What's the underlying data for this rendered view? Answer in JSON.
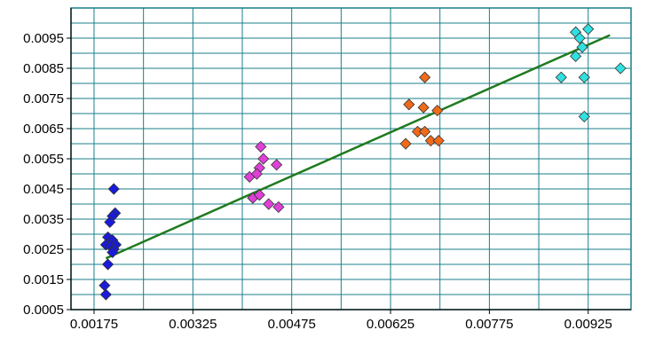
{
  "chart_data": {
    "type": "scatter",
    "title": "",
    "xlabel": "",
    "ylabel": "",
    "xlim": [
      0.0014,
      0.0099
    ],
    "ylim": [
      0.0005,
      0.0105
    ],
    "x_ticks": [
      "0.00175",
      "0.00325",
      "0.00475",
      "0.00625",
      "0.00775",
      "0.00925"
    ],
    "x_tick_values": [
      0.00175,
      0.00325,
      0.00475,
      0.00625,
      0.00775,
      0.00925
    ],
    "y_ticks": [
      "0.0095",
      "0.0085",
      "0.0075",
      "0.0065",
      "0.0055",
      "0.0045",
      "0.0035",
      "0.0025",
      "0.0015",
      "0.0005"
    ],
    "y_tick_values": [
      0.0095,
      0.0085,
      0.0075,
      0.0065,
      0.0055,
      0.0045,
      0.0035,
      0.0025,
      0.0015,
      0.0005
    ],
    "x_gridlines": [
      0.00175,
      0.0025,
      0.00325,
      0.004,
      0.00475,
      0.0055,
      0.00625,
      0.007,
      0.00775,
      0.0085,
      0.00925
    ],
    "y_gridlines": [
      0.0005,
      0.001,
      0.0015,
      0.002,
      0.0025,
      0.003,
      0.0035,
      0.004,
      0.0045,
      0.005,
      0.0055,
      0.006,
      0.0065,
      0.007,
      0.0075,
      0.008,
      0.0085,
      0.009,
      0.0095,
      0.01
    ],
    "grid": true,
    "legend": "none",
    "colors": {
      "grid": "#1a7f8a",
      "axis": "#000000",
      "trendline": "#1f7a1f",
      "marker_outline": "#333333"
    },
    "series": [
      {
        "color": "#1a1adb",
        "points": [
          [
            0.00205,
            0.0045
          ],
          [
            0.00207,
            0.0037
          ],
          [
            0.00203,
            0.0036
          ],
          [
            0.00199,
            0.0034
          ],
          [
            0.00196,
            0.0029
          ],
          [
            0.00203,
            0.0028
          ],
          [
            0.00193,
            0.00265
          ],
          [
            0.00208,
            0.00265
          ],
          [
            0.002,
            0.0026
          ],
          [
            0.00205,
            0.0025
          ],
          [
            0.00203,
            0.0024
          ],
          [
            0.00196,
            0.002
          ],
          [
            0.00191,
            0.0013
          ],
          [
            0.00193,
            0.001
          ]
        ]
      },
      {
        "color": "#e040d8",
        "points": [
          [
            0.00428,
            0.0059
          ],
          [
            0.00432,
            0.0055
          ],
          [
            0.00426,
            0.0052
          ],
          [
            0.00452,
            0.0053
          ],
          [
            0.00411,
            0.0049
          ],
          [
            0.00422,
            0.005
          ],
          [
            0.00416,
            0.0042
          ],
          [
            0.00426,
            0.0043
          ],
          [
            0.0044,
            0.004
          ],
          [
            0.00455,
            0.0039
          ]
        ]
      },
      {
        "color": "#f06a1a",
        "points": [
          [
            0.00677,
            0.0082
          ],
          [
            0.00653,
            0.0073
          ],
          [
            0.00675,
            0.0072
          ],
          [
            0.00696,
            0.0071
          ],
          [
            0.00666,
            0.0064
          ],
          [
            0.00677,
            0.0064
          ],
          [
            0.00648,
            0.006
          ],
          [
            0.00686,
            0.0061
          ],
          [
            0.00698,
            0.0061
          ]
        ]
      },
      {
        "color": "#30e0e0",
        "points": [
          [
            0.00925,
            0.0098
          ],
          [
            0.00906,
            0.0097
          ],
          [
            0.00912,
            0.0095
          ],
          [
            0.00916,
            0.0092
          ],
          [
            0.00906,
            0.0089
          ],
          [
            0.00884,
            0.0082
          ],
          [
            0.00919,
            0.0082
          ],
          [
            0.00974,
            0.0085
          ],
          [
            0.00919,
            0.0069
          ]
        ]
      }
    ],
    "trendline": {
      "x": [
        0.00193,
        0.00958
      ],
      "y": [
        0.0022,
        0.0096
      ]
    }
  }
}
